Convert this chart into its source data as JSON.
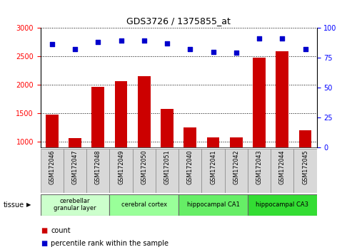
{
  "title": "GDS3726 / 1375855_at",
  "samples": [
    "GSM172046",
    "GSM172047",
    "GSM172048",
    "GSM172049",
    "GSM172050",
    "GSM172051",
    "GSM172040",
    "GSM172041",
    "GSM172042",
    "GSM172043",
    "GSM172044",
    "GSM172045"
  ],
  "bar_values": [
    1480,
    1065,
    1960,
    2065,
    2155,
    1575,
    1245,
    1080,
    1080,
    2480,
    2590,
    1195
  ],
  "dot_values": [
    86,
    82,
    88,
    89,
    89,
    87,
    82,
    80,
    79,
    91,
    91,
    82
  ],
  "bar_color": "#cc0000",
  "dot_color": "#0000cc",
  "ylim_left": [
    900,
    3000
  ],
  "ylim_right": [
    0,
    100
  ],
  "yticks_left": [
    1000,
    1500,
    2000,
    2500,
    3000
  ],
  "yticks_right": [
    0,
    25,
    50,
    75,
    100
  ],
  "tissue_groups": [
    {
      "label": "cerebellar\ngranular layer",
      "start": 0,
      "end": 3,
      "color": "#ccffcc"
    },
    {
      "label": "cerebral cortex",
      "start": 3,
      "end": 6,
      "color": "#99ff99"
    },
    {
      "label": "hippocampal CA1",
      "start": 6,
      "end": 9,
      "color": "#66ee66"
    },
    {
      "label": "hippocampal CA3",
      "start": 9,
      "end": 12,
      "color": "#33dd33"
    }
  ],
  "tissue_label": "tissue",
  "legend_count_label": "count",
  "legend_pct_label": "percentile rank within the sample",
  "background_color": "#ffffff",
  "plot_bg_color": "#ffffff",
  "xlabel_bg_color": "#d8d8d8"
}
